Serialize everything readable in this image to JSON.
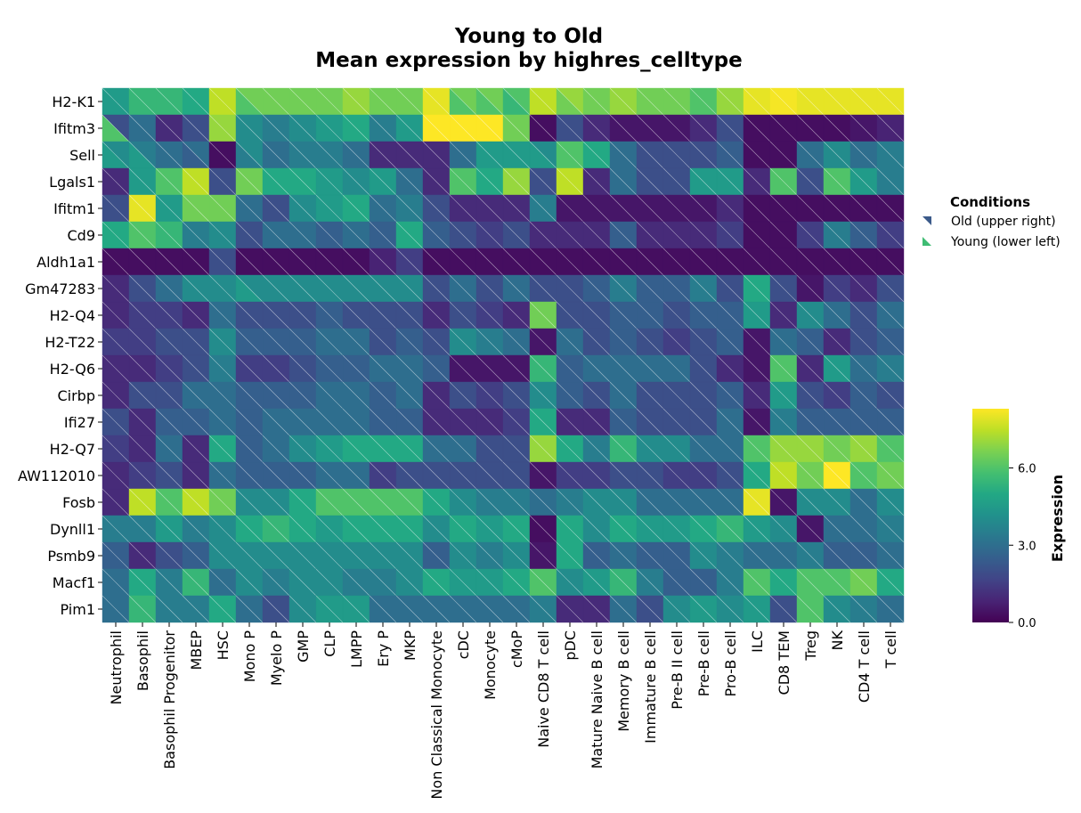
{
  "chart_data": {
    "type": "heatmap",
    "title": [
      "Young to Old",
      "Mean expression by highres_celltype"
    ],
    "cell_split": "diagonal",
    "legend": {
      "title": "Conditions",
      "placement": "right",
      "entries": [
        {
          "name": "Old (upper right)",
          "color": "#3b5a8a"
        },
        {
          "name": "Young (lower left)",
          "color": "#3fbc73"
        }
      ]
    },
    "colorbar": {
      "label": "Expression",
      "colormap": "viridis",
      "min": 0,
      "max": 8.3,
      "ticks": [
        0,
        3,
        6
      ],
      "tick_labels": [
        "0.0",
        "3.0",
        "6.0"
      ]
    },
    "genes": [
      "H2-K1",
      "Ifitm3",
      "Sell",
      "Lgals1",
      "Ifitm1",
      "Cd9",
      "Aldh1a1",
      "Gm47283",
      "H2-Q4",
      "H2-T22",
      "H2-Q6",
      "Cirbp",
      "Ifi27",
      "H2-Q7",
      "AW112010",
      "Fosb",
      "Dynll1",
      "Psmb9",
      "Macf1",
      "Pim1"
    ],
    "cell_types": [
      "Neutrophil",
      "Basophil",
      "Basophil Progenitor",
      "MBEP",
      "HSC",
      "Mono P",
      "Myelo P",
      "GMP",
      "CLP",
      "LMPP",
      "Ery P",
      "MKP",
      "Non Classical Monocyte",
      "cDC",
      "Monocyte",
      "cMoP",
      "Naive CD8 T cell",
      "pDC",
      "Mature Naive B cell",
      "Memory B cell",
      "Immature B cell",
      "Pre-B II cell",
      "Pre-B cell",
      "Pro-B cell",
      "ILC",
      "CD8 TEM",
      "Treg",
      "NK",
      "CD4 T cell",
      "T cell"
    ],
    "old": [
      [
        4.5,
        5.5,
        5.5,
        5,
        7.5,
        6.5,
        6.5,
        6.5,
        6.5,
        7,
        6.5,
        6.5,
        8,
        6.5,
        6.5,
        6,
        7.5,
        7,
        6.5,
        7,
        6.5,
        6.5,
        6,
        7,
        8,
        8.2,
        8,
        8,
        8,
        8
      ],
      [
        2,
        3,
        1,
        2,
        7,
        4,
        3.5,
        4,
        4.5,
        5,
        3.5,
        4.5,
        8.3,
        8.3,
        8.3,
        6.5,
        0.3,
        2,
        1,
        0.5,
        0.5,
        0.5,
        1,
        2,
        0.3,
        0.3,
        0.3,
        0.3,
        0.5,
        0.8
      ],
      [
        4,
        3.5,
        3,
        3,
        0.3,
        4,
        3,
        3.5,
        3.5,
        3,
        1,
        1,
        1,
        3,
        4.5,
        4.5,
        4,
        6,
        5,
        3,
        2,
        2,
        2,
        2.5,
        0.3,
        0.3,
        3,
        4,
        3,
        3.5
      ],
      [
        1,
        4.5,
        6,
        7.5,
        2,
        6.5,
        5,
        5,
        4.5,
        4,
        4.5,
        3,
        1,
        6,
        5,
        7,
        2,
        7.5,
        1,
        3,
        2,
        2,
        4.5,
        4.5,
        1,
        6,
        2,
        6,
        4.5,
        3.5
      ],
      [
        2,
        8,
        4.5,
        6.5,
        6.5,
        3,
        2,
        4,
        4.5,
        5,
        3,
        3.5,
        2,
        1,
        1,
        1,
        3.5,
        0.5,
        0.5,
        0.5,
        0.5,
        0.5,
        0.5,
        1,
        0.3,
        0.3,
        0.3,
        0.3,
        0.3,
        0.3
      ],
      [
        5,
        6,
        5.5,
        3.5,
        4,
        2,
        3,
        3,
        2.5,
        3,
        2.5,
        5,
        2.5,
        2,
        1.5,
        2,
        1,
        1,
        1,
        2.5,
        1,
        1,
        1,
        1.5,
        0.3,
        0.3,
        1.5,
        3.5,
        2.5,
        1.5
      ],
      [
        0.3,
        0.3,
        0.3,
        0.3,
        2,
        0.3,
        0.3,
        0.3,
        0.3,
        0.3,
        0.8,
        1.5,
        0.3,
        0.3,
        0.3,
        0.3,
        0.3,
        0.3,
        0.3,
        0.3,
        0.3,
        0.3,
        0.3,
        0.3,
        0.3,
        0.3,
        0.3,
        0.3,
        0.3,
        0.3
      ],
      [
        1,
        2,
        3,
        4,
        4,
        4,
        4,
        4,
        4,
        4,
        4,
        4,
        2,
        3,
        2,
        3,
        2,
        2,
        2.5,
        3.5,
        2.5,
        2.5,
        3.5,
        2,
        5,
        2,
        0.5,
        1.5,
        1,
        2
      ],
      [
        1,
        1.5,
        1.5,
        1,
        3,
        2,
        2,
        2,
        2.5,
        2,
        2,
        2,
        1,
        2,
        1.5,
        1,
        6.5,
        2,
        2,
        2.5,
        2.5,
        2,
        2.5,
        2.5,
        4.5,
        1,
        4,
        3,
        2,
        3
      ],
      [
        1.5,
        1.5,
        2,
        2,
        4,
        2.5,
        2.5,
        2.5,
        3,
        3,
        2,
        2.5,
        2,
        4,
        3.5,
        3,
        0.5,
        3,
        2,
        2.5,
        2,
        1.5,
        2,
        2.5,
        0.5,
        3,
        2.5,
        1,
        2,
        2.5
      ],
      [
        1,
        1,
        1.5,
        2,
        3.5,
        1.5,
        1.5,
        2,
        2.5,
        2.5,
        3,
        3,
        2.5,
        0.5,
        0.5,
        0.5,
        5.5,
        2.5,
        3,
        3,
        3,
        3,
        2,
        1,
        0.5,
        6,
        1,
        4.5,
        3,
        3.5
      ],
      [
        1,
        2,
        2,
        3,
        3,
        2.5,
        2.5,
        2.5,
        3,
        3,
        2.5,
        3,
        1,
        2,
        1.5,
        2,
        4,
        2.5,
        2,
        3,
        2,
        2,
        2,
        2.5,
        1,
        4.5,
        2,
        1.5,
        2.5,
        2
      ],
      [
        2,
        1,
        2.5,
        2.5,
        3,
        2.5,
        3,
        3,
        3,
        3,
        2.5,
        2.5,
        1,
        1,
        1,
        1.5,
        5,
        1,
        1,
        2.5,
        2,
        2,
        2,
        3,
        0.5,
        3.5,
        2.5,
        2.5,
        2.5,
        2.5
      ],
      [
        1.5,
        1,
        3,
        1,
        5,
        2.5,
        3,
        4,
        4.5,
        5,
        5,
        5,
        3,
        3,
        2,
        2,
        7,
        5,
        3.5,
        5.5,
        4,
        4,
        3,
        3,
        6,
        7,
        7,
        6.5,
        7,
        6
      ],
      [
        1,
        1.5,
        2,
        1,
        3,
        2.5,
        2.5,
        2.5,
        3,
        3,
        1.5,
        2,
        2,
        2,
        2,
        2,
        0.5,
        1.5,
        1.5,
        2,
        2,
        1.5,
        1.5,
        2,
        5,
        7.5,
        6.5,
        8.3,
        6,
        6.5
      ],
      [
        1,
        7.5,
        6,
        7.5,
        6.5,
        4,
        4,
        5,
        6,
        6,
        6,
        6,
        5,
        4,
        3.5,
        3.5,
        3,
        3.5,
        4,
        4,
        3,
        3,
        3,
        3,
        8,
        0.5,
        4,
        4,
        3,
        4
      ],
      [
        3.5,
        3.5,
        4.5,
        3.5,
        4,
        5,
        5.5,
        5,
        4.5,
        5,
        5,
        5,
        4,
        5,
        4.5,
        5,
        0.3,
        5,
        4,
        5,
        4.5,
        4.5,
        5,
        5.5,
        4.5,
        4,
        0.5,
        3,
        3,
        3.5
      ],
      [
        2.5,
        1,
        2,
        2.5,
        4,
        4,
        4,
        4,
        4,
        4,
        4,
        4,
        2.5,
        4,
        3.5,
        4,
        0.5,
        5,
        2.5,
        3,
        2.5,
        2.5,
        4,
        3.5,
        3,
        3,
        3.5,
        2.5,
        2.5,
        3
      ],
      [
        3,
        5,
        3.5,
        5.5,
        3,
        4,
        3.5,
        4,
        4,
        3.5,
        3.5,
        4,
        5,
        4.5,
        4.5,
        5,
        6,
        4,
        4.5,
        5.5,
        3.5,
        2.5,
        2.5,
        3.5,
        6,
        5,
        6,
        6,
        6.5,
        5
      ],
      [
        3,
        5.5,
        3.5,
        3.5,
        5,
        3,
        2,
        4,
        4.5,
        4.5,
        3,
        3,
        3,
        3,
        3,
        3,
        3.5,
        1,
        1,
        3,
        2,
        4,
        4.5,
        4,
        4.5,
        2,
        6,
        4,
        3.5,
        3
      ]
    ],
    "young": [
      [
        4.5,
        5.5,
        5.5,
        5,
        7.5,
        6,
        6.5,
        6.5,
        6.5,
        7,
        6.5,
        6.5,
        8,
        6,
        6,
        5.5,
        7.5,
        6.5,
        6.5,
        7,
        6.5,
        6.5,
        6,
        7,
        8,
        8.2,
        8,
        8,
        8,
        8
      ],
      [
        6,
        3,
        1,
        2,
        7,
        4,
        3.5,
        4,
        4.5,
        5,
        3.5,
        4.5,
        8.3,
        8.3,
        8.3,
        6.5,
        0.3,
        2,
        1,
        0.5,
        0.5,
        0.5,
        1,
        2,
        0.3,
        0.3,
        0.3,
        0.3,
        0.5,
        0.8
      ],
      [
        4.5,
        4.5,
        3,
        2.5,
        0.3,
        3.5,
        3,
        3.5,
        3.5,
        3,
        1,
        1,
        1,
        3,
        4.5,
        4.5,
        4.5,
        6,
        5,
        3,
        2,
        2,
        2,
        2.5,
        0.3,
        0.3,
        3,
        4,
        3,
        3.5
      ],
      [
        1,
        4.5,
        6,
        7.5,
        2,
        6.5,
        5,
        5,
        4.5,
        4,
        4.5,
        3,
        1,
        6,
        5,
        7,
        2,
        7.5,
        1,
        3,
        2,
        2,
        4.5,
        4.5,
        1,
        6,
        2,
        6,
        4.5,
        3.5
      ],
      [
        2,
        8,
        4.5,
        6.5,
        6.5,
        3,
        2,
        4,
        4.5,
        5,
        3,
        3.5,
        2,
        1,
        1,
        1,
        3.5,
        0.5,
        0.5,
        0.5,
        0.5,
        0.5,
        0.5,
        1,
        0.3,
        0.3,
        0.3,
        0.3,
        0.3,
        0.3
      ],
      [
        5,
        6,
        5.5,
        3.5,
        4,
        2,
        3,
        3,
        2.5,
        3,
        2.5,
        5,
        2.5,
        2,
        1.5,
        2,
        1,
        1,
        1,
        2.5,
        1,
        1,
        1,
        1.5,
        0.3,
        0.3,
        1.5,
        3.5,
        2.5,
        1.5
      ],
      [
        0.3,
        0.3,
        0.3,
        0.3,
        2,
        0.3,
        0.3,
        0.3,
        0.3,
        0.3,
        0.8,
        1.5,
        0.3,
        0.3,
        0.3,
        0.3,
        0.3,
        0.3,
        0.3,
        0.3,
        0.3,
        0.3,
        0.3,
        0.3,
        0.3,
        0.3,
        0.3,
        0.3,
        0.3,
        0.3
      ],
      [
        1,
        2,
        3,
        4,
        4,
        4.5,
        4,
        4,
        4,
        4,
        4,
        4,
        2,
        3,
        2,
        3,
        2,
        2,
        2.5,
        3.5,
        2.5,
        2.5,
        3.5,
        2,
        5,
        2,
        0.5,
        1.5,
        1,
        2
      ],
      [
        1,
        1.5,
        1.5,
        1,
        3,
        2,
        2,
        2,
        2.5,
        2,
        2,
        2,
        1,
        2,
        1.5,
        1,
        6.5,
        2,
        2,
        2.5,
        2.5,
        2,
        2.5,
        2.5,
        4.5,
        1,
        4,
        3,
        2,
        3
      ],
      [
        1.5,
        1.5,
        2,
        2,
        4,
        2.5,
        2.5,
        2.5,
        3,
        3,
        2,
        2.5,
        2,
        4,
        3.5,
        3,
        0.5,
        3,
        2,
        2.5,
        2,
        1.5,
        2,
        2.5,
        0.5,
        3,
        2.5,
        1,
        2,
        2.5
      ],
      [
        1,
        1,
        1.5,
        2,
        3.5,
        1.5,
        1.5,
        2,
        2.5,
        2.5,
        3,
        3,
        2.5,
        0.5,
        0.5,
        0.5,
        5.5,
        2.5,
        3,
        3,
        3,
        3,
        2,
        1,
        0.5,
        6,
        1,
        4.5,
        3,
        3.5
      ],
      [
        1,
        2,
        2,
        3,
        3,
        2.5,
        2.5,
        2.5,
        3,
        3,
        2.5,
        3,
        1,
        2,
        1.5,
        2,
        4,
        2.5,
        2,
        3,
        2,
        2,
        2,
        2.5,
        1,
        4.5,
        2,
        1.5,
        2.5,
        2
      ],
      [
        2,
        1,
        2.5,
        2.5,
        3,
        2.5,
        3,
        3,
        3,
        3,
        2.5,
        2.5,
        1,
        1,
        1,
        1.5,
        5,
        1,
        1,
        2.5,
        2,
        2,
        2,
        3,
        0.5,
        3.5,
        2.5,
        2.5,
        2.5,
        2.5
      ],
      [
        1.5,
        1,
        3,
        1,
        5,
        2.5,
        3,
        4,
        4.5,
        5,
        5,
        5,
        3,
        3,
        2,
        2,
        7,
        5,
        3.5,
        5.5,
        4,
        4,
        3,
        3,
        6,
        7,
        7,
        6.5,
        7,
        6
      ],
      [
        1,
        1.5,
        2,
        1,
        3,
        2.5,
        2.5,
        2.5,
        3,
        3,
        1.5,
        2,
        2,
        2,
        2,
        2,
        0.5,
        1.5,
        1.5,
        2,
        2,
        1.5,
        1.5,
        2,
        5,
        7.5,
        6.5,
        8.3,
        6,
        6.5
      ],
      [
        1,
        7.5,
        6,
        7.5,
        6.5,
        4,
        4,
        5,
        6,
        6,
        6,
        6,
        5,
        4,
        3.5,
        3.5,
        3,
        3.5,
        4,
        4,
        3,
        3,
        3,
        3,
        8,
        0.5,
        4,
        4,
        3,
        4
      ],
      [
        3.5,
        3.5,
        4.5,
        3.5,
        4,
        5,
        5.5,
        5,
        4.5,
        5,
        5,
        5,
        4,
        5,
        4.5,
        5,
        0.3,
        5,
        4,
        5,
        4.5,
        4.5,
        5,
        5.5,
        4.5,
        4,
        0.5,
        3,
        3,
        3.5
      ],
      [
        2.5,
        1,
        2,
        2.5,
        4,
        4,
        4,
        4,
        4,
        4,
        4,
        4,
        2.5,
        4,
        3.5,
        4,
        0.5,
        5,
        2.5,
        3,
        2.5,
        2.5,
        4,
        3.5,
        3,
        3,
        3.5,
        2.5,
        2.5,
        3
      ],
      [
        3,
        5,
        3.5,
        5.5,
        3,
        4,
        3.5,
        4,
        4,
        3.5,
        3.5,
        4,
        5,
        4.5,
        4.5,
        5,
        6,
        4,
        4.5,
        5.5,
        3.5,
        2.5,
        2.5,
        3.5,
        6,
        5,
        6,
        6,
        6.5,
        5
      ],
      [
        3,
        5.5,
        3.5,
        3.5,
        5,
        3,
        2,
        4,
        4.5,
        4.5,
        3,
        3,
        3,
        3,
        3,
        3,
        3.5,
        1,
        1,
        3,
        2,
        4,
        4.5,
        4,
        4.5,
        2,
        6,
        4,
        3.5,
        3
      ]
    ]
  }
}
